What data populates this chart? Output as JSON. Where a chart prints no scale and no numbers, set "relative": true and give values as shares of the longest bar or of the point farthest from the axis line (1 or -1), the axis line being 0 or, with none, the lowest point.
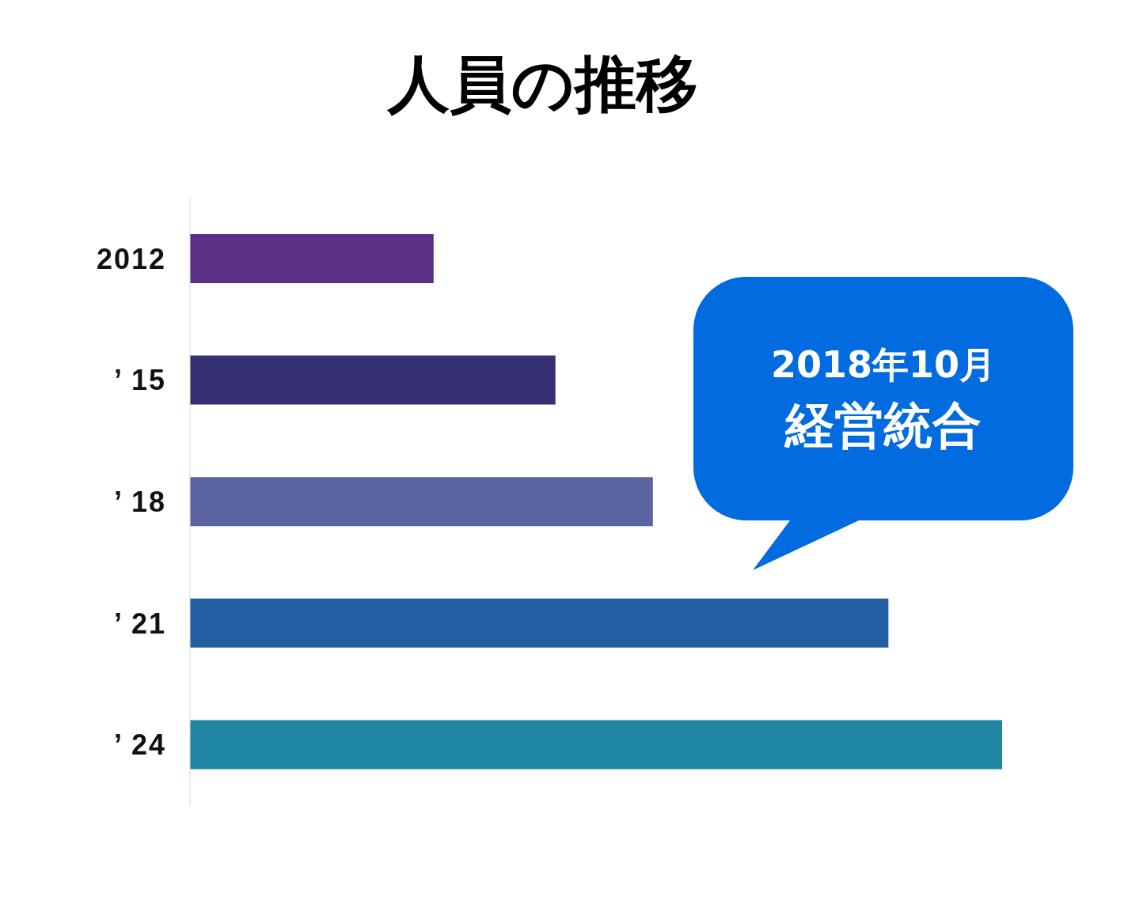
{
  "chart_data": {
    "type": "bar",
    "orientation": "horizontal",
    "relative": true,
    "title": "人員の推移",
    "categories": [
      "2012",
      "’ 15",
      "’ 18",
      "’ 21",
      "’ 24"
    ],
    "values": [
      0.3,
      0.45,
      0.57,
      0.86,
      1
    ],
    "colors": [
      "#5b2f86",
      "#372f73",
      "#5a64a0",
      "#225fa3",
      "#1f87a3"
    ],
    "annotations": [
      "2018年10月",
      "経営統合"
    ]
  }
}
